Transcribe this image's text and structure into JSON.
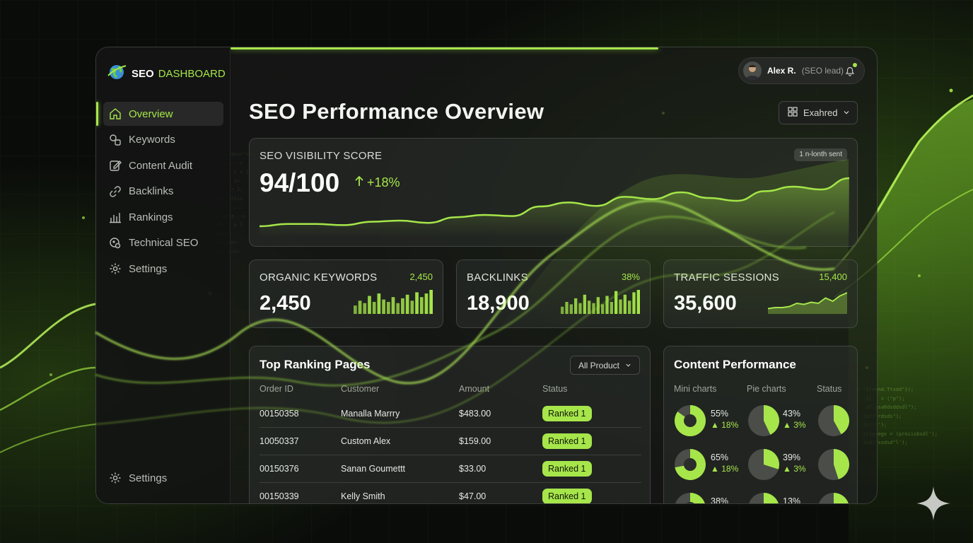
{
  "brand": {
    "strong": "SEO",
    "light": "DASHBOARD"
  },
  "progress": {
    "fraction": 0.66
  },
  "sidebar": {
    "items": [
      {
        "label": "Overview",
        "icon": "home-icon",
        "active": true
      },
      {
        "label": "Keywords",
        "icon": "keywords-icon"
      },
      {
        "label": "Content Audit",
        "icon": "edit-icon"
      },
      {
        "label": "Backlinks",
        "icon": "link-icon"
      },
      {
        "label": "Rankings",
        "icon": "bar-chart-icon"
      },
      {
        "label": "Technical SEO",
        "icon": "technical-icon"
      },
      {
        "label": "Settings",
        "icon": "gear-icon"
      }
    ],
    "bottom_label": "Settings"
  },
  "user": {
    "name": "Alex R.",
    "role": "(SEO lead)"
  },
  "page_title": "SEO Performance Overview",
  "view_select": {
    "label": "Exahred"
  },
  "visibility": {
    "label": "SEO VISIBILITY SCORE",
    "value": "94/100",
    "delta": "+18%",
    "badge": "1 n-lonth sent"
  },
  "kpis": [
    {
      "label": "ORGANIC KEYWORDS",
      "value": "2,450",
      "corner": "2,450",
      "chart": "bars",
      "bars": [
        0.35,
        0.55,
        0.45,
        0.75,
        0.5,
        0.85,
        0.6,
        0.5,
        0.7,
        0.45,
        0.65,
        0.8,
        0.55,
        0.9,
        0.7,
        0.85,
        1.0
      ]
    },
    {
      "label": "BACKLINKS",
      "value": "18,900",
      "corner": "38%",
      "chart": "bars",
      "bars": [
        0.3,
        0.5,
        0.4,
        0.65,
        0.45,
        0.8,
        0.55,
        0.45,
        0.7,
        0.4,
        0.75,
        0.5,
        0.95,
        0.6,
        0.8,
        0.55,
        0.9,
        1.0
      ]
    },
    {
      "label": "TRAFFIC SESSIONS",
      "value": "35,600",
      "corner": "15,400",
      "chart": "area",
      "points": [
        0.25,
        0.3,
        0.3,
        0.35,
        0.5,
        0.45,
        0.55,
        0.5,
        0.75,
        0.6,
        0.85,
        1.0
      ]
    }
  ],
  "visibility_trend": [
    0.1,
    0.14,
    0.14,
    0.12,
    0.18,
    0.2,
    0.16,
    0.26,
    0.3,
    0.28,
    0.45,
    0.52,
    0.46,
    0.62,
    0.58,
    0.7,
    0.6,
    0.55,
    0.72,
    0.8,
    0.75,
    0.95
  ],
  "table": {
    "title": "Top Ranking Pages",
    "filter": "All Product",
    "headers": [
      "Order ID",
      "Customer",
      "Amount",
      "Status"
    ],
    "rows": [
      [
        "00150358",
        "Manalla Marrry",
        "$483.00",
        "Ranked 1"
      ],
      [
        "10050337",
        "Custom Alex",
        "$159.00",
        "Ranked 1"
      ],
      [
        "00150376",
        "Sanan Goumettt",
        "$33.00",
        "Ranked 1"
      ],
      [
        "00150339",
        "Kelly Smith",
        "$47.00",
        "Ranked 1"
      ]
    ]
  },
  "content_performance": {
    "title": "Content Performance",
    "headers": [
      "Mini charts",
      "Pie charts",
      "Status"
    ],
    "rows": [
      {
        "pct_a": "55%",
        "delta_a": "18%",
        "pct_b": "43%",
        "delta_b": "3%",
        "frac_a": 0.85,
        "frac_b": 0.43,
        "frac_c": 0.42
      },
      {
        "pct_a": "65%",
        "delta_a": "18%",
        "pct_b": "39%",
        "delta_b": "3%",
        "frac_a": 0.72,
        "frac_b": 0.3,
        "frac_c": 0.45
      },
      {
        "pct_a": "38%",
        "delta_a": "",
        "pct_b": "13%",
        "delta_b": "",
        "frac_a": 0.6,
        "frac_b": 0.2,
        "frac_c": 0.45
      }
    ]
  },
  "colors": {
    "accent": "#a6e64a",
    "background": "#0a0c0a",
    "card": "#2c2f2c"
  }
}
